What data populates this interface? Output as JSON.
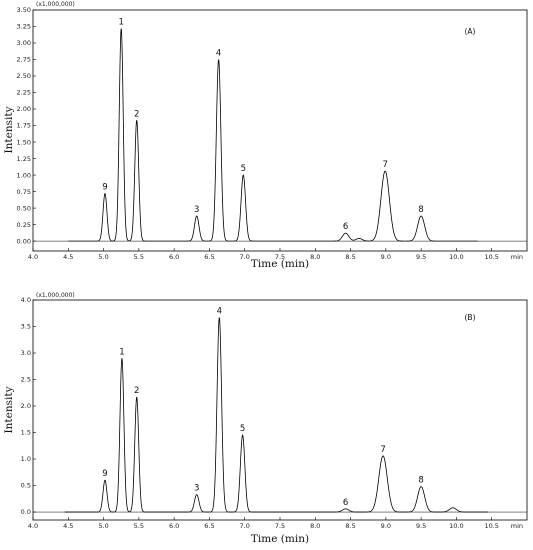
{
  "chart_data": [
    {
      "type": "line",
      "panel_label": "(A)",
      "scale_label": "(x1,000,000)",
      "xlabel": "Time (min)",
      "x_unit": "min",
      "ylabel": "Intensity",
      "xlim": [
        4.0,
        11.0
      ],
      "ylim": [
        -0.15,
        3.5
      ],
      "x_ticks": [
        "4.0",
        "4.5",
        "5.0",
        "5.5",
        "6.0",
        "6.5",
        "7.0",
        "7.5",
        "8.0",
        "8.5",
        "9.0",
        "9.5",
        "10.0",
        "10.5"
      ],
      "y_ticks": [
        {
          "value": 0.0,
          "label": "0.00"
        },
        {
          "value": 0.25,
          "label": "0.25"
        },
        {
          "value": 0.5,
          "label": "0.50"
        },
        {
          "value": 0.75,
          "label": "0.75"
        },
        {
          "value": 1.0,
          "label": "1.00"
        },
        {
          "value": 1.25,
          "label": "1.25"
        },
        {
          "value": 1.5,
          "label": "1.50"
        },
        {
          "value": 1.75,
          "label": "1.75"
        },
        {
          "value": 2.0,
          "label": "2.00"
        },
        {
          "value": 2.25,
          "label": "2.25"
        },
        {
          "value": 2.5,
          "label": "2.50"
        },
        {
          "value": 2.75,
          "label": "2.75"
        },
        {
          "value": 3.0,
          "label": "3.00"
        },
        {
          "value": 3.25,
          "label": "3.25"
        },
        {
          "value": 3.5,
          "label": "3.50"
        }
      ],
      "trace_range": [
        4.5,
        10.3
      ],
      "peaks": [
        {
          "label": "9",
          "x": 5.02,
          "y": 0.72
        },
        {
          "label": "1",
          "x": 5.25,
          "y": 3.22
        },
        {
          "label": "2",
          "x": 5.47,
          "y": 1.83
        },
        {
          "label": "3",
          "x": 6.32,
          "y": 0.38
        },
        {
          "label": "4",
          "x": 6.63,
          "y": 2.75
        },
        {
          "label": "5",
          "x": 6.98,
          "y": 1.0
        },
        {
          "label": "6",
          "x": 8.43,
          "y": 0.12
        },
        {
          "label": "7",
          "x": 8.99,
          "y": 1.06
        },
        {
          "label": "8",
          "x": 9.5,
          "y": 0.38
        }
      ],
      "minor_peaks": [
        {
          "x": 8.62,
          "y": 0.04
        }
      ]
    },
    {
      "type": "line",
      "panel_label": "(B)",
      "scale_label": "(x1,000,000)",
      "xlabel": "Time (min)",
      "x_unit": "min",
      "ylabel": "Intensity",
      "xlim": [
        4.0,
        11.0
      ],
      "ylim": [
        -0.15,
        4.0
      ],
      "x_ticks": [
        "4.0",
        "4.5",
        "5.0",
        "5.5",
        "6.0",
        "6.5",
        "7.0",
        "7.5",
        "8.0",
        "8.5",
        "9.0",
        "9.5",
        "10.0",
        "10.5"
      ],
      "y_ticks": [
        {
          "value": 0.0,
          "label": "0.0"
        },
        {
          "value": 0.5,
          "label": "0.5"
        },
        {
          "value": 1.0,
          "label": "1.0"
        },
        {
          "value": 1.5,
          "label": "1.5"
        },
        {
          "value": 2.0,
          "label": "2.0"
        },
        {
          "value": 2.5,
          "label": "2.5"
        },
        {
          "value": 3.0,
          "label": "3.0"
        },
        {
          "value": 3.5,
          "label": "3.5"
        },
        {
          "value": 4.0,
          "label": "4.0"
        }
      ],
      "trace_range": [
        4.45,
        10.45
      ],
      "peaks": [
        {
          "label": "9",
          "x": 5.02,
          "y": 0.6
        },
        {
          "label": "1",
          "x": 5.26,
          "y": 2.9
        },
        {
          "label": "2",
          "x": 5.47,
          "y": 2.17
        },
        {
          "label": "3",
          "x": 6.32,
          "y": 0.33
        },
        {
          "label": "4",
          "x": 6.64,
          "y": 3.67
        },
        {
          "label": "5",
          "x": 6.97,
          "y": 1.45
        },
        {
          "label": "6",
          "x": 8.43,
          "y": 0.06
        },
        {
          "label": "7",
          "x": 8.96,
          "y": 1.06
        },
        {
          "label": "8",
          "x": 9.5,
          "y": 0.48
        }
      ],
      "minor_peaks": [
        {
          "x": 9.95,
          "y": 0.08
        }
      ]
    }
  ]
}
